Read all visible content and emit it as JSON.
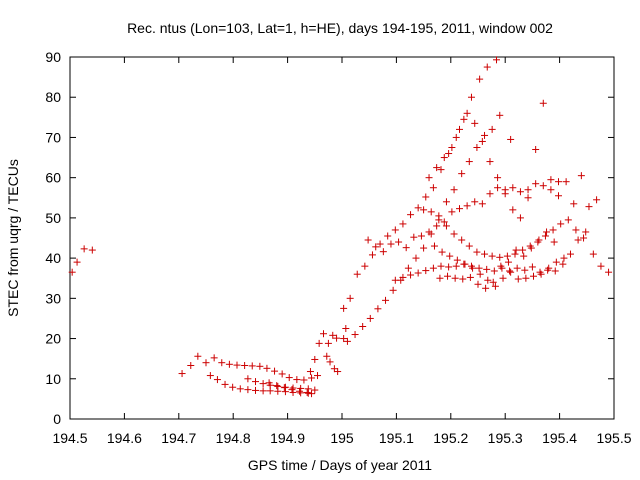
{
  "chart_data": {
    "type": "scatter",
    "title": "Rec. ntus (Lon=103, Lat=1, h=HE), days 194-195, 2011, window 002",
    "xlabel": "GPS time / Days of year 2011",
    "ylabel": "STEC from uqrg / TECUs",
    "xlim": [
      194.5,
      195.5
    ],
    "ylim": [
      0,
      90
    ],
    "x_ticks": [
      "194.5",
      "194.6",
      "194.7",
      "194.8",
      "194.9",
      "195",
      "195.1",
      "195.2",
      "195.3",
      "195.4",
      "195.5"
    ],
    "y_ticks": [
      "0",
      "10",
      "20",
      "30",
      "40",
      "50",
      "60",
      "70",
      "80",
      "90"
    ],
    "grid": false,
    "legend": "none",
    "marker": "+",
    "marker_color": "#cc0000",
    "points": [
      [
        194.504,
        36.5
      ],
      [
        194.513,
        39.0
      ],
      [
        194.526,
        42.3
      ],
      [
        194.541,
        42.0
      ],
      [
        194.706,
        11.3
      ],
      [
        194.722,
        13.3
      ],
      [
        194.735,
        15.6
      ],
      [
        194.75,
        14.0
      ],
      [
        194.765,
        15.2
      ],
      [
        194.779,
        14.0
      ],
      [
        194.793,
        13.6
      ],
      [
        194.807,
        13.4
      ],
      [
        194.821,
        13.3
      ],
      [
        194.835,
        13.2
      ],
      [
        194.849,
        13.1
      ],
      [
        194.862,
        12.6
      ],
      [
        194.876,
        11.9
      ],
      [
        194.89,
        11.2
      ],
      [
        194.903,
        10.3
      ],
      [
        194.917,
        9.8
      ],
      [
        194.93,
        9.7
      ],
      [
        194.944,
        10.2
      ],
      [
        194.955,
        10.8
      ],
      [
        194.758,
        10.8
      ],
      [
        194.771,
        9.8
      ],
      [
        194.785,
        8.6
      ],
      [
        194.799,
        7.9
      ],
      [
        194.813,
        7.5
      ],
      [
        194.827,
        7.3
      ],
      [
        194.841,
        7.1
      ],
      [
        194.855,
        7.0
      ],
      [
        194.868,
        7.0
      ],
      [
        194.882,
        6.9
      ],
      [
        194.896,
        6.8
      ],
      [
        194.91,
        6.6
      ],
      [
        194.924,
        6.5
      ],
      [
        194.938,
        6.4
      ],
      [
        194.95,
        7.2
      ],
      [
        194.827,
        10.0
      ],
      [
        194.841,
        9.3
      ],
      [
        194.855,
        8.8
      ],
      [
        194.868,
        8.4
      ],
      [
        194.882,
        8.1
      ],
      [
        194.896,
        7.9
      ],
      [
        194.91,
        7.7
      ],
      [
        194.924,
        7.6
      ],
      [
        194.938,
        7.5
      ],
      [
        194.866,
        9.0
      ],
      [
        194.88,
        8.3
      ],
      [
        194.894,
        7.8
      ],
      [
        194.908,
        7.3
      ],
      [
        194.922,
        6.9
      ],
      [
        194.936,
        6.6
      ],
      [
        194.944,
        6.3
      ],
      [
        194.942,
        11.8
      ],
      [
        194.95,
        14.8
      ],
      [
        194.958,
        18.8
      ],
      [
        194.966,
        21.2
      ],
      [
        194.975,
        18.8
      ],
      [
        194.983,
        20.8
      ],
      [
        194.99,
        20.1
      ],
      [
        194.972,
        15.6
      ],
      [
        194.978,
        14.2
      ],
      [
        194.986,
        12.5
      ],
      [
        194.992,
        11.8
      ],
      [
        195.003,
        20.0
      ],
      [
        195.007,
        22.5
      ],
      [
        195.003,
        27.5
      ],
      [
        195.015,
        30.0
      ],
      [
        195.028,
        36.0
      ],
      [
        195.042,
        38.0
      ],
      [
        195.056,
        40.8
      ],
      [
        195.07,
        43.5
      ],
      [
        195.084,
        45.5
      ],
      [
        195.098,
        47.0
      ],
      [
        195.112,
        48.5
      ],
      [
        195.126,
        50.8
      ],
      [
        195.14,
        52.5
      ],
      [
        195.154,
        55.2
      ],
      [
        195.168,
        57.5
      ],
      [
        195.182,
        62.0
      ],
      [
        195.196,
        66.0
      ],
      [
        195.21,
        70.0
      ],
      [
        195.224,
        74.5
      ],
      [
        195.238,
        80.0
      ],
      [
        195.253,
        84.5
      ],
      [
        195.267,
        87.5
      ],
      [
        195.284,
        89.3
      ],
      [
        195.01,
        19.3
      ],
      [
        195.024,
        21.0
      ],
      [
        195.038,
        23.0
      ],
      [
        195.052,
        25.0
      ],
      [
        195.066,
        27.4
      ],
      [
        195.08,
        29.5
      ],
      [
        195.094,
        32.0
      ],
      [
        195.108,
        34.5
      ],
      [
        195.122,
        37.5
      ],
      [
        195.136,
        40.0
      ],
      [
        195.15,
        42.5
      ],
      [
        195.164,
        46.0
      ],
      [
        195.178,
        50.5
      ],
      [
        195.192,
        54.0
      ],
      [
        195.206,
        57.0
      ],
      [
        195.22,
        61.0
      ],
      [
        195.234,
        64.0
      ],
      [
        195.248,
        67.5
      ],
      [
        195.262,
        70.5
      ],
      [
        195.276,
        72.0
      ],
      [
        195.29,
        75.5
      ],
      [
        195.31,
        69.5
      ],
      [
        195.048,
        44.5
      ],
      [
        195.062,
        42.8
      ],
      [
        195.076,
        41.6
      ],
      [
        195.09,
        43.5
      ],
      [
        195.104,
        44.0
      ],
      [
        195.118,
        42.6
      ],
      [
        195.132,
        45.2
      ],
      [
        195.146,
        45.5
      ],
      [
        195.16,
        46.5
      ],
      [
        195.174,
        48.0
      ],
      [
        195.188,
        49.0
      ],
      [
        195.202,
        51.5
      ],
      [
        195.216,
        52.3
      ],
      [
        195.23,
        53.0
      ],
      [
        195.244,
        54.0
      ],
      [
        195.258,
        53.5
      ],
      [
        195.272,
        56.0
      ],
      [
        195.286,
        57.5
      ],
      [
        195.3,
        57.0
      ],
      [
        195.314,
        57.5
      ],
      [
        195.328,
        56.5
      ],
      [
        195.342,
        57.0
      ],
      [
        195.356,
        58.5
      ],
      [
        195.37,
        58.0
      ],
      [
        195.384,
        57.0
      ],
      [
        195.398,
        55.5
      ],
      [
        195.412,
        59.0
      ],
      [
        195.426,
        53.5
      ],
      [
        195.44,
        60.5
      ],
      [
        195.454,
        52.8
      ],
      [
        195.468,
        54.5
      ],
      [
        195.098,
        34.5
      ],
      [
        195.112,
        35.2
      ],
      [
        195.126,
        35.8
      ],
      [
        195.14,
        36.3
      ],
      [
        195.154,
        36.9
      ],
      [
        195.168,
        37.5
      ],
      [
        195.182,
        38.0
      ],
      [
        195.196,
        37.8
      ],
      [
        195.21,
        38.0
      ],
      [
        195.224,
        38.5
      ],
      [
        195.238,
        38.0
      ],
      [
        195.252,
        37.5
      ],
      [
        195.266,
        37.2
      ],
      [
        195.28,
        36.8
      ],
      [
        195.294,
        37.5
      ],
      [
        195.308,
        36.8
      ],
      [
        195.322,
        37.5
      ],
      [
        195.336,
        37.0
      ],
      [
        195.35,
        37.8
      ],
      [
        195.364,
        36.5
      ],
      [
        195.378,
        37.0
      ],
      [
        195.392,
        36.8
      ],
      [
        195.406,
        38.5
      ],
      [
        195.42,
        41.0
      ],
      [
        195.434,
        44.5
      ],
      [
        195.448,
        46.5
      ],
      [
        195.462,
        41.0
      ],
      [
        195.476,
        38.0
      ],
      [
        195.49,
        36.5
      ],
      [
        195.15,
        52.0
      ],
      [
        195.164,
        51.5
      ],
      [
        195.178,
        49.5
      ],
      [
        195.192,
        48.0
      ],
      [
        195.206,
        46.0
      ],
      [
        195.22,
        44.5
      ],
      [
        195.234,
        43.0
      ],
      [
        195.248,
        41.5
      ],
      [
        195.262,
        41.0
      ],
      [
        195.276,
        40.5
      ],
      [
        195.29,
        40.2
      ],
      [
        195.304,
        40.5
      ],
      [
        195.318,
        41.0
      ],
      [
        195.332,
        42.0
      ],
      [
        195.346,
        43.0
      ],
      [
        195.36,
        44.0
      ],
      [
        195.374,
        45.5
      ],
      [
        195.388,
        47.0
      ],
      [
        195.402,
        48.5
      ],
      [
        195.416,
        49.5
      ],
      [
        195.43,
        47.0
      ],
      [
        195.444,
        45.0
      ],
      [
        195.16,
        60.0
      ],
      [
        195.174,
        62.5
      ],
      [
        195.188,
        65.0
      ],
      [
        195.202,
        67.5
      ],
      [
        195.216,
        72.0
      ],
      [
        195.23,
        76.0
      ],
      [
        195.244,
        73.5
      ],
      [
        195.258,
        69.0
      ],
      [
        195.272,
        64.0
      ],
      [
        195.286,
        60.0
      ],
      [
        195.3,
        56.0
      ],
      [
        195.314,
        52.0
      ],
      [
        195.328,
        50.0
      ],
      [
        195.342,
        55.0
      ],
      [
        195.356,
        67.0
      ],
      [
        195.37,
        78.5
      ],
      [
        195.384,
        59.5
      ],
      [
        195.398,
        59.0
      ],
      [
        195.17,
        43.0
      ],
      [
        195.184,
        41.5
      ],
      [
        195.198,
        40.5
      ],
      [
        195.212,
        39.5
      ],
      [
        195.226,
        38.5
      ],
      [
        195.24,
        37.5
      ],
      [
        195.254,
        36.0
      ],
      [
        195.268,
        34.5
      ],
      [
        195.282,
        33.0
      ],
      [
        195.296,
        35.0
      ],
      [
        195.31,
        36.5
      ],
      [
        195.324,
        34.8
      ],
      [
        195.338,
        35.0
      ],
      [
        195.352,
        35.5
      ],
      [
        195.366,
        36.0
      ],
      [
        195.38,
        37.5
      ],
      [
        195.394,
        39.0
      ],
      [
        195.408,
        40.0
      ],
      [
        195.18,
        35.0
      ],
      [
        195.194,
        35.5
      ],
      [
        195.208,
        35.0
      ],
      [
        195.222,
        34.8
      ],
      [
        195.236,
        35.2
      ],
      [
        195.25,
        33.5
      ],
      [
        195.264,
        32.5
      ],
      [
        195.278,
        34.0
      ],
      [
        195.292,
        38.0
      ],
      [
        195.306,
        39.0
      ],
      [
        195.32,
        42.0
      ],
      [
        195.334,
        40.5
      ],
      [
        195.348,
        42.5
      ],
      [
        195.362,
        44.5
      ],
      [
        195.376,
        46.5
      ],
      [
        195.39,
        44.0
      ]
    ]
  }
}
